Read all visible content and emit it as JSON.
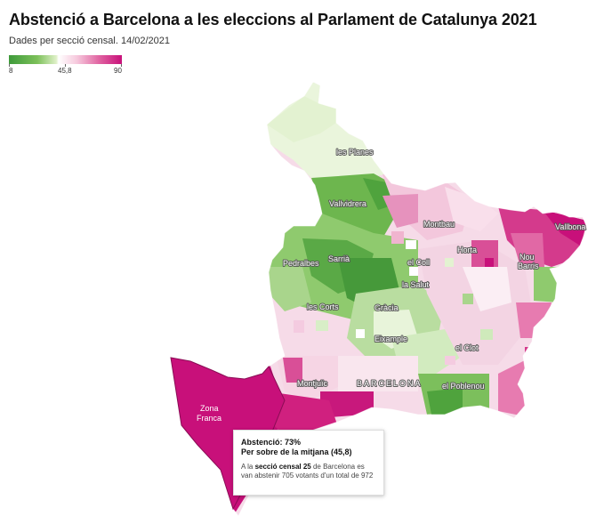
{
  "header": {
    "title": "Abstenció a Barcelona a les eleccions al Parlament de Catalunya 2021",
    "subtitle": "Dades per secció censal. 14/02/2021"
  },
  "legend": {
    "min_label": "8",
    "mid_label": "45,8",
    "max_label": "90",
    "colors": {
      "low": "#3e9a3a",
      "mid": "#ffffff",
      "high": "#c8107a"
    }
  },
  "map": {
    "labels": {
      "les_planes": "les Planes",
      "vallvidrera": "Vallvidrera",
      "montbau": "Montbau",
      "vallbona": "Vallbona",
      "horta": "Horta",
      "nou_barris_1": "Nou",
      "nou_barris_2": "Barris",
      "pedralbes": "Pedralbes",
      "sarria": "Sarrià",
      "el_coll": "el Coll",
      "la_salut": "la Salut",
      "les_corts": "les Corts",
      "gracia": "Gràcia",
      "eixample": "Eixample",
      "el_clot": "el Clot",
      "montjuic": "Montjuïc",
      "barcelona": "BARCELONA",
      "el_poblenou": "el Poblenou",
      "zona_franca_1": "Zona",
      "zona_franca_2": "Franca"
    }
  },
  "tooltip": {
    "title": "Abstenció: 73%",
    "subtitle": "Per sobre de la mitjana (45,8)",
    "desc_prefix": "A la ",
    "desc_bold": "secció censal 25",
    "desc_suffix": " de Barcelona es van abstenir 705 votants d'un total de 972"
  }
}
